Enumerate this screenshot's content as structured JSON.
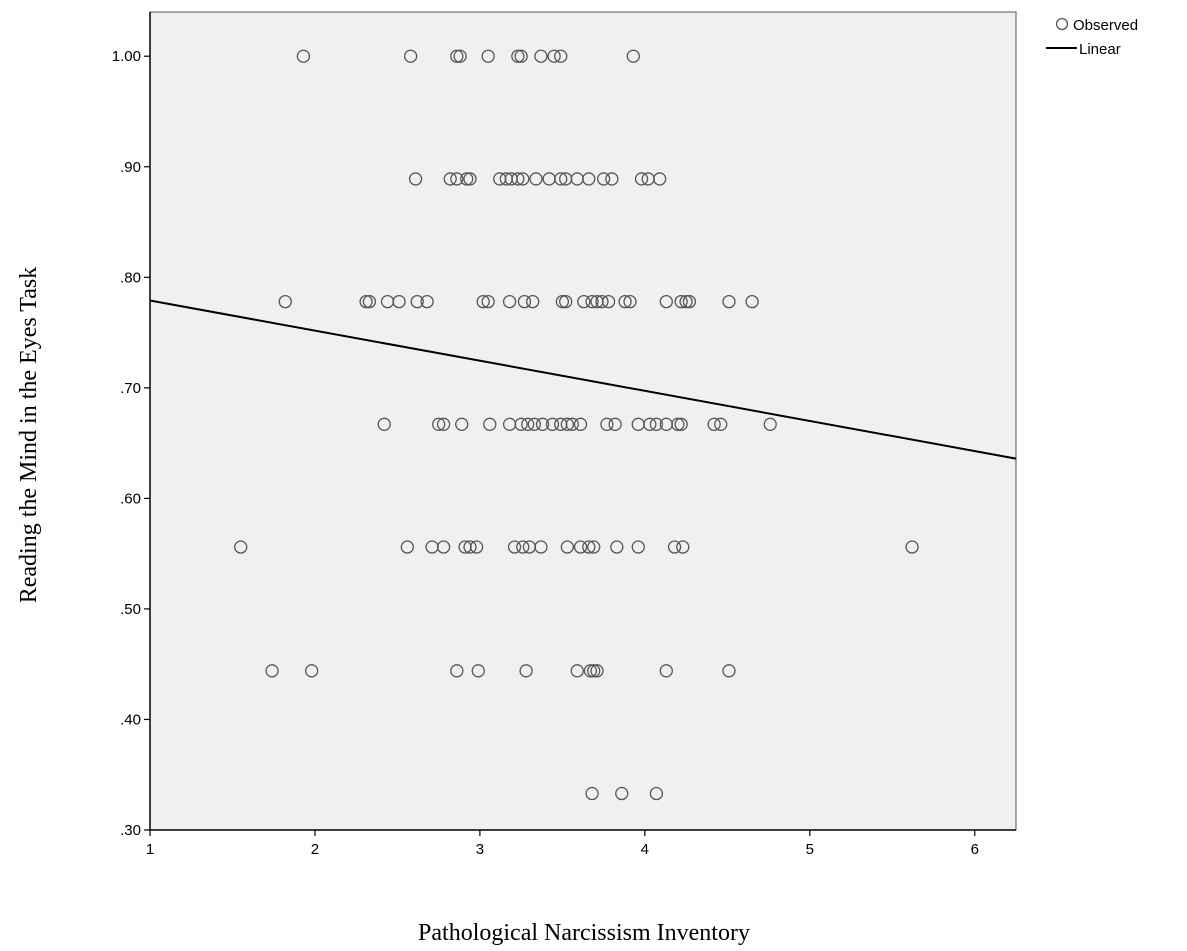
{
  "chart_data": {
    "type": "scatter",
    "xlabel": "Pathological Narcissism Inventory",
    "ylabel": "Reading the Mind in the Eyes Task",
    "xlim": [
      1,
      6.25
    ],
    "ylim": [
      0.3,
      1.04
    ],
    "x_ticks": [
      1,
      2,
      3,
      4,
      5,
      6
    ],
    "x_tick_labels": [
      "1",
      "2",
      "3",
      "4",
      "5",
      "6"
    ],
    "y_ticks": [
      0.3,
      0.4,
      0.5,
      0.6,
      0.7,
      0.8,
      0.9,
      1.0
    ],
    "y_tick_labels": [
      ".30",
      ".40",
      ".50",
      ".60",
      ".70",
      ".80",
      ".90",
      "1.00"
    ],
    "grid": false,
    "legend_position": "top-right",
    "legend": [
      {
        "label": "Observed",
        "marker": "circle"
      },
      {
        "label": "Linear",
        "marker": "line"
      }
    ],
    "series": [
      {
        "name": "Observed",
        "points": [
          [
            1.93,
            1.0
          ],
          [
            2.58,
            1.0
          ],
          [
            2.86,
            1.0
          ],
          [
            2.88,
            1.0
          ],
          [
            3.05,
            1.0
          ],
          [
            3.23,
            1.0
          ],
          [
            3.25,
            1.0
          ],
          [
            3.37,
            1.0
          ],
          [
            3.45,
            1.0
          ],
          [
            3.49,
            1.0
          ],
          [
            3.93,
            1.0
          ],
          [
            2.61,
            0.889
          ],
          [
            2.82,
            0.889
          ],
          [
            2.86,
            0.889
          ],
          [
            2.92,
            0.889
          ],
          [
            2.94,
            0.889
          ],
          [
            3.12,
            0.889
          ],
          [
            3.16,
            0.889
          ],
          [
            3.19,
            0.889
          ],
          [
            3.23,
            0.889
          ],
          [
            3.26,
            0.889
          ],
          [
            3.34,
            0.889
          ],
          [
            3.42,
            0.889
          ],
          [
            3.49,
            0.889
          ],
          [
            3.52,
            0.889
          ],
          [
            3.59,
            0.889
          ],
          [
            3.66,
            0.889
          ],
          [
            3.75,
            0.889
          ],
          [
            3.8,
            0.889
          ],
          [
            3.98,
            0.889
          ],
          [
            4.02,
            0.889
          ],
          [
            4.09,
            0.889
          ],
          [
            1.82,
            0.778
          ],
          [
            2.31,
            0.778
          ],
          [
            2.33,
            0.778
          ],
          [
            2.44,
            0.778
          ],
          [
            2.51,
            0.778
          ],
          [
            2.62,
            0.778
          ],
          [
            2.68,
            0.778
          ],
          [
            3.02,
            0.778
          ],
          [
            3.05,
            0.778
          ],
          [
            3.18,
            0.778
          ],
          [
            3.27,
            0.778
          ],
          [
            3.32,
            0.778
          ],
          [
            3.5,
            0.778
          ],
          [
            3.52,
            0.778
          ],
          [
            3.63,
            0.778
          ],
          [
            3.68,
            0.778
          ],
          [
            3.71,
            0.778
          ],
          [
            3.74,
            0.778
          ],
          [
            3.78,
            0.778
          ],
          [
            3.88,
            0.778
          ],
          [
            3.91,
            0.778
          ],
          [
            4.13,
            0.778
          ],
          [
            4.22,
            0.778
          ],
          [
            4.25,
            0.778
          ],
          [
            4.27,
            0.778
          ],
          [
            4.51,
            0.778
          ],
          [
            4.65,
            0.778
          ],
          [
            2.42,
            0.667
          ],
          [
            2.75,
            0.667
          ],
          [
            2.78,
            0.667
          ],
          [
            2.89,
            0.667
          ],
          [
            3.06,
            0.667
          ],
          [
            3.18,
            0.667
          ],
          [
            3.25,
            0.667
          ],
          [
            3.29,
            0.667
          ],
          [
            3.33,
            0.667
          ],
          [
            3.38,
            0.667
          ],
          [
            3.44,
            0.667
          ],
          [
            3.49,
            0.667
          ],
          [
            3.53,
            0.667
          ],
          [
            3.56,
            0.667
          ],
          [
            3.61,
            0.667
          ],
          [
            3.77,
            0.667
          ],
          [
            3.82,
            0.667
          ],
          [
            3.96,
            0.667
          ],
          [
            4.03,
            0.667
          ],
          [
            4.07,
            0.667
          ],
          [
            4.13,
            0.667
          ],
          [
            4.2,
            0.667
          ],
          [
            4.22,
            0.667
          ],
          [
            4.42,
            0.667
          ],
          [
            4.46,
            0.667
          ],
          [
            4.76,
            0.667
          ],
          [
            1.55,
            0.556
          ],
          [
            2.56,
            0.556
          ],
          [
            2.71,
            0.556
          ],
          [
            2.78,
            0.556
          ],
          [
            2.91,
            0.556
          ],
          [
            2.94,
            0.556
          ],
          [
            2.98,
            0.556
          ],
          [
            3.21,
            0.556
          ],
          [
            3.26,
            0.556
          ],
          [
            3.3,
            0.556
          ],
          [
            3.37,
            0.556
          ],
          [
            3.53,
            0.556
          ],
          [
            3.61,
            0.556
          ],
          [
            3.66,
            0.556
          ],
          [
            3.69,
            0.556
          ],
          [
            3.83,
            0.556
          ],
          [
            3.96,
            0.556
          ],
          [
            4.18,
            0.556
          ],
          [
            4.23,
            0.556
          ],
          [
            5.62,
            0.556
          ],
          [
            1.74,
            0.444
          ],
          [
            1.98,
            0.444
          ],
          [
            2.86,
            0.444
          ],
          [
            2.99,
            0.444
          ],
          [
            3.28,
            0.444
          ],
          [
            3.59,
            0.444
          ],
          [
            3.67,
            0.444
          ],
          [
            3.69,
            0.444
          ],
          [
            3.71,
            0.444
          ],
          [
            4.13,
            0.444
          ],
          [
            4.51,
            0.444
          ],
          [
            3.68,
            0.333
          ],
          [
            3.86,
            0.333
          ],
          [
            4.07,
            0.333
          ]
        ]
      },
      {
        "name": "Linear",
        "type": "line",
        "points": [
          [
            1,
            0.779
          ],
          [
            6.25,
            0.636
          ]
        ]
      }
    ]
  }
}
